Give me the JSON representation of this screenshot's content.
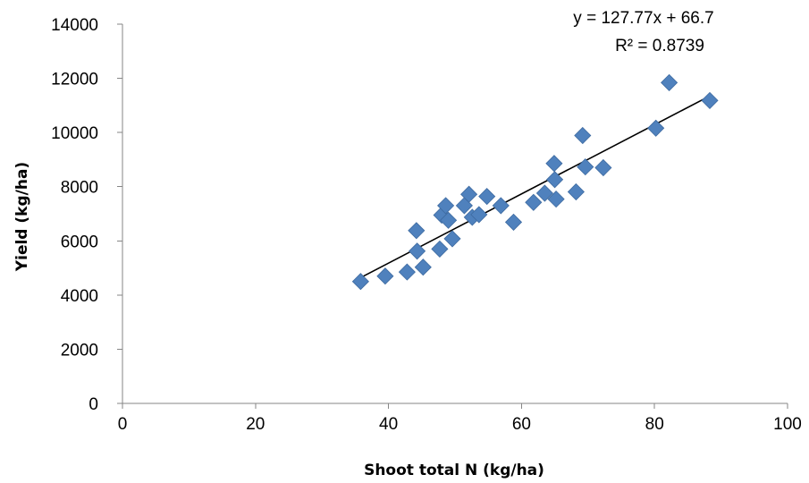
{
  "chart_data": {
    "type": "scatter",
    "title": "",
    "xlabel": "Shoot total N (kg/ha)",
    "ylabel": "Yield (kg/ha)",
    "xlim": [
      0,
      100
    ],
    "ylim": [
      0,
      14000
    ],
    "x_ticks": [
      "0",
      "20",
      "40",
      "60",
      "80",
      "100"
    ],
    "y_ticks": [
      "0",
      "2000",
      "4000",
      "6000",
      "8000",
      "10000",
      "12000",
      "14000"
    ],
    "grid": false,
    "legend": "none",
    "marker_color": "#4f81bd",
    "marker": "diamond",
    "points": [
      {
        "x": 35.8,
        "y": 4500
      },
      {
        "x": 39.5,
        "y": 4700
      },
      {
        "x": 42.8,
        "y": 4850
      },
      {
        "x": 44.2,
        "y": 6380
      },
      {
        "x": 44.3,
        "y": 5620
      },
      {
        "x": 45.2,
        "y": 5030
      },
      {
        "x": 47.7,
        "y": 5700
      },
      {
        "x": 48.0,
        "y": 6950
      },
      {
        "x": 48.6,
        "y": 7300
      },
      {
        "x": 49.0,
        "y": 6760
      },
      {
        "x": 49.6,
        "y": 6080
      },
      {
        "x": 51.4,
        "y": 7300
      },
      {
        "x": 52.1,
        "y": 7720
      },
      {
        "x": 52.6,
        "y": 6870
      },
      {
        "x": 53.6,
        "y": 6970
      },
      {
        "x": 54.8,
        "y": 7640
      },
      {
        "x": 56.9,
        "y": 7300
      },
      {
        "x": 58.8,
        "y": 6690
      },
      {
        "x": 61.8,
        "y": 7420
      },
      {
        "x": 63.5,
        "y": 7760
      },
      {
        "x": 64.9,
        "y": 8860
      },
      {
        "x": 65.0,
        "y": 8260
      },
      {
        "x": 65.2,
        "y": 7540
      },
      {
        "x": 68.2,
        "y": 7810
      },
      {
        "x": 69.2,
        "y": 9890
      },
      {
        "x": 69.6,
        "y": 8730
      },
      {
        "x": 72.3,
        "y": 8700
      },
      {
        "x": 80.2,
        "y": 10160
      },
      {
        "x": 82.2,
        "y": 11840
      },
      {
        "x": 88.3,
        "y": 11180
      }
    ],
    "trendline": {
      "type": "linear",
      "slope": 127.77,
      "intercept": 66.7,
      "x_range": [
        35.8,
        88.3
      ],
      "color": "#000000"
    },
    "annotations": {
      "equation": "y = 127.77x + 66.7",
      "r_squared": "R² = 0.8739"
    }
  }
}
